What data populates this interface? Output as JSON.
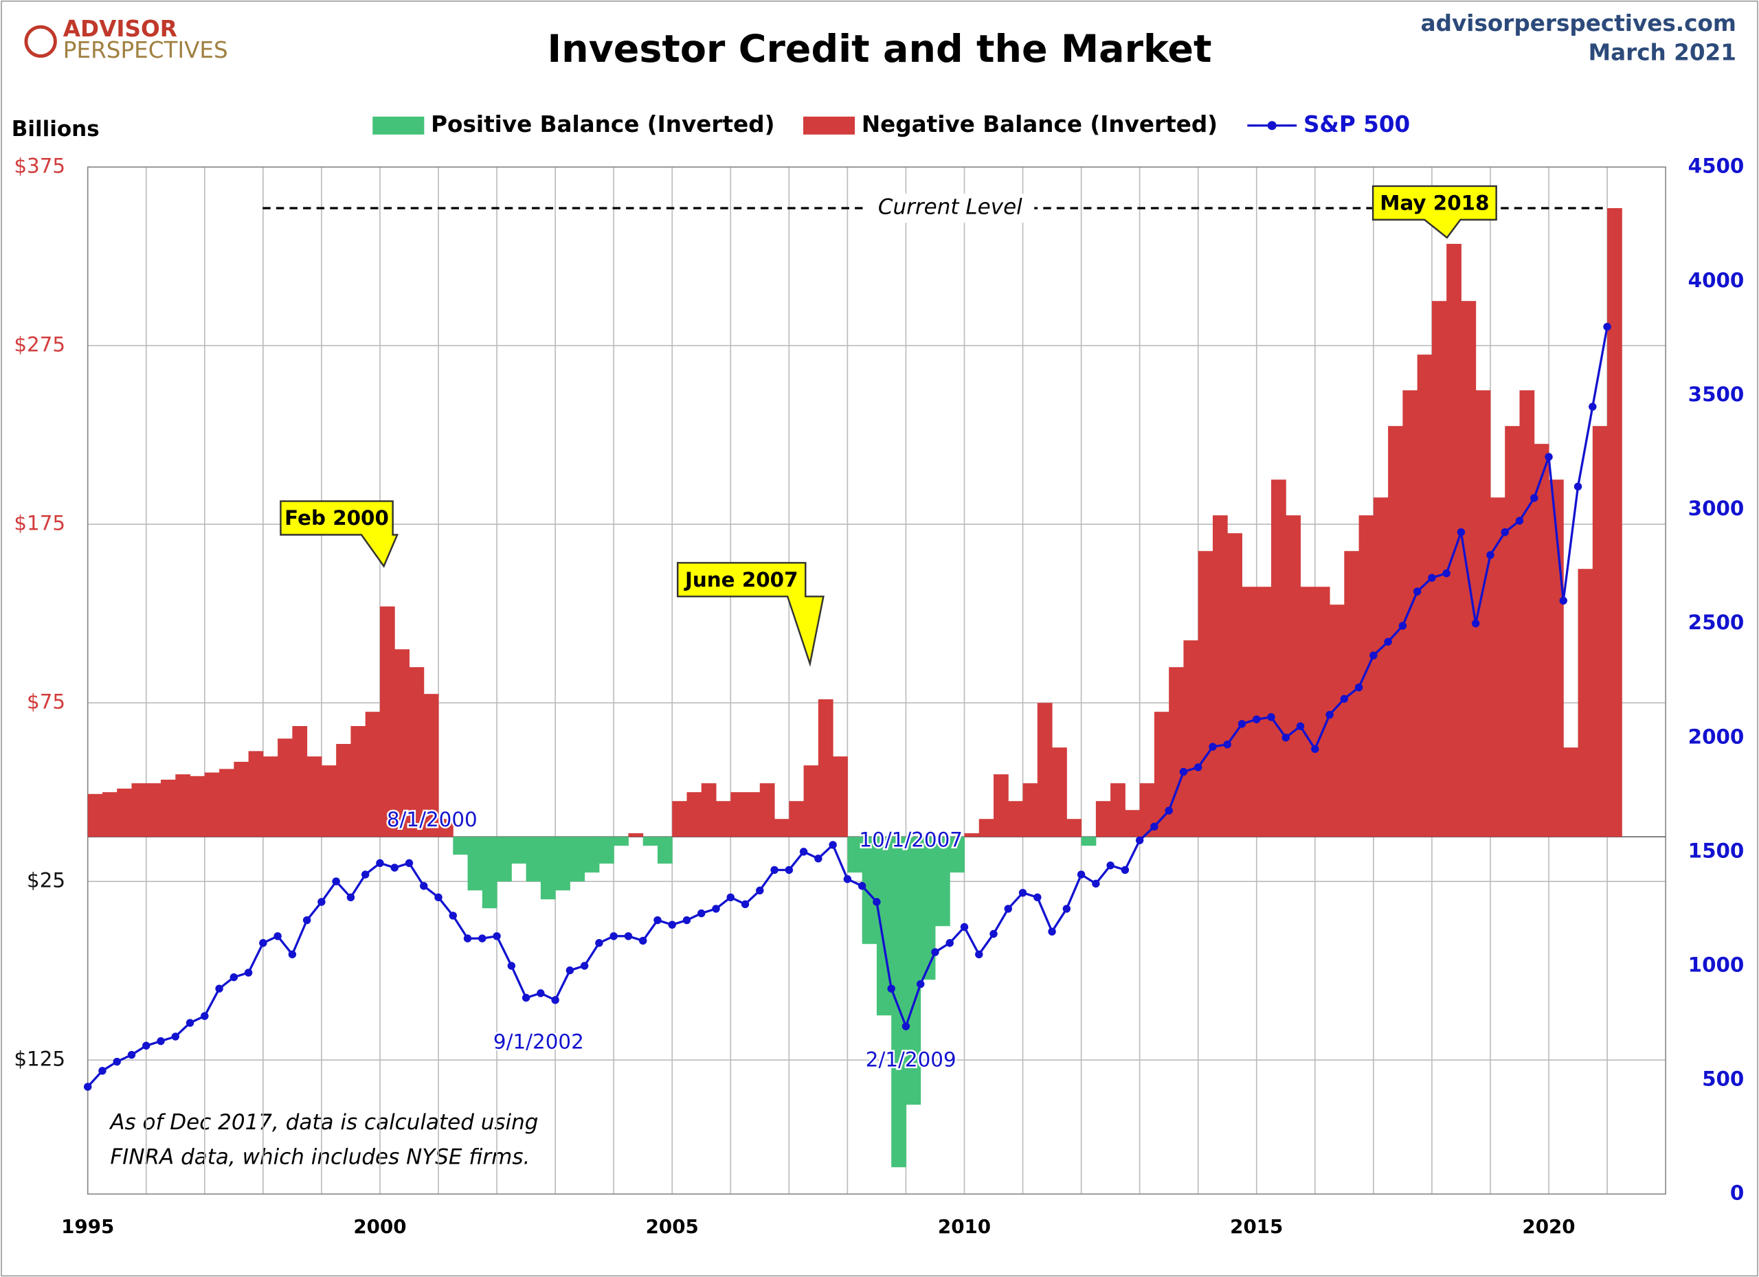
{
  "chart_data": {
    "type": "bar",
    "title": "Investor Credit and the Market",
    "source": "advisorperspectives.com",
    "date": "March 2021",
    "logo": [
      "ADVISOR",
      "PERSPECTIVES"
    ],
    "y_label": "Billions",
    "note": [
      "As of Dec 2017,  data is calculated using",
      "FINRA data, which includes NYSE firms."
    ],
    "current_level_label": "Current Level",
    "callouts": [
      "Feb 2000",
      "June 2007",
      "May 2018"
    ],
    "date_labels": [
      "8/1/2000",
      "9/1/2002",
      "10/1/2007",
      "2/1/2009"
    ],
    "x": [
      1995,
      1995.25,
      1995.5,
      1995.75,
      1996,
      1996.25,
      1996.5,
      1996.75,
      1997,
      1997.25,
      1997.5,
      1997.75,
      1998,
      1998.25,
      1998.5,
      1998.75,
      1999,
      1999.25,
      1999.5,
      1999.75,
      2000,
      2000.25,
      2000.5,
      2000.75,
      2001,
      2001.25,
      2001.5,
      2001.75,
      2002,
      2002.25,
      2002.5,
      2002.75,
      2003,
      2003.25,
      2003.5,
      2003.75,
      2004,
      2004.25,
      2004.5,
      2004.75,
      2005,
      2005.25,
      2005.5,
      2005.75,
      2006,
      2006.25,
      2006.5,
      2006.75,
      2007,
      2007.25,
      2007.5,
      2007.75,
      2008,
      2008.25,
      2008.5,
      2008.75,
      2009,
      2009.25,
      2009.5,
      2009.75,
      2010,
      2010.25,
      2010.5,
      2010.75,
      2011,
      2011.25,
      2011.5,
      2011.75,
      2012,
      2012.25,
      2012.5,
      2012.75,
      2013,
      2013.25,
      2013.5,
      2013.75,
      2014,
      2014.25,
      2014.5,
      2014.75,
      2015,
      2015.25,
      2015.5,
      2015.75,
      2016,
      2016.25,
      2016.5,
      2016.75,
      2017,
      2017.25,
      2017.5,
      2017.75,
      2018,
      2018.25,
      2018.5,
      2018.75,
      2019,
      2019.25,
      2019.5,
      2019.75,
      2020,
      2020.25,
      2020.5,
      2020.75,
      2021
    ],
    "series": [
      {
        "name": "Positive Balance (Inverted)",
        "color": "#45c27a",
        "values": [
          null,
          null,
          null,
          null,
          null,
          null,
          null,
          null,
          null,
          null,
          null,
          null,
          null,
          null,
          null,
          null,
          null,
          null,
          null,
          null,
          null,
          null,
          null,
          null,
          null,
          -10,
          -30,
          -40,
          -25,
          -15,
          -25,
          -35,
          -30,
          -25,
          -20,
          -15,
          -5,
          null,
          -5,
          -15,
          null,
          null,
          null,
          null,
          null,
          null,
          null,
          null,
          null,
          null,
          null,
          null,
          -20,
          -60,
          -100,
          -185,
          -150,
          -80,
          -50,
          -20,
          null,
          null,
          null,
          null,
          null,
          null,
          null,
          null,
          -5,
          null,
          null,
          null,
          null,
          null,
          null,
          null,
          null,
          null,
          null,
          null,
          null,
          null,
          null,
          null,
          null,
          null,
          null,
          null,
          null,
          null,
          null,
          null,
          null,
          null,
          null,
          null,
          null,
          null,
          null,
          null,
          null,
          null,
          null,
          null,
          null
        ]
      },
      {
        "name": "Negative Balance (Inverted)",
        "color": "#d23c3c",
        "values": [
          24,
          25,
          27,
          30,
          30,
          32,
          35,
          34,
          36,
          38,
          42,
          48,
          45,
          55,
          62,
          45,
          40,
          52,
          62,
          70,
          129,
          105,
          95,
          80,
          10,
          null,
          null,
          null,
          null,
          null,
          null,
          null,
          null,
          null,
          null,
          null,
          null,
          2,
          null,
          null,
          20,
          25,
          30,
          20,
          25,
          25,
          30,
          10,
          20,
          40,
          77,
          45,
          null,
          null,
          null,
          null,
          null,
          null,
          null,
          null,
          2,
          10,
          35,
          20,
          30,
          75,
          50,
          10,
          null,
          20,
          30,
          15,
          30,
          70,
          95,
          110,
          160,
          180,
          170,
          140,
          140,
          200,
          180,
          140,
          140,
          130,
          160,
          180,
          190,
          230,
          250,
          270,
          300,
          332,
          300,
          250,
          190,
          230,
          250,
          220,
          200,
          50,
          150,
          230,
          352
        ]
      },
      {
        "name": "S&P 500",
        "color": "#1212d0",
        "axis": "y2",
        "values": [
          470,
          540,
          580,
          610,
          650,
          670,
          690,
          750,
          780,
          900,
          950,
          970,
          1100,
          1130,
          1050,
          1200,
          1280,
          1370,
          1300,
          1400,
          1450,
          1430,
          1450,
          1350,
          1300,
          1220,
          1120,
          1120,
          1130,
          1000,
          860,
          880,
          850,
          980,
          1000,
          1100,
          1130,
          1130,
          1110,
          1200,
          1180,
          1200,
          1230,
          1250,
          1300,
          1270,
          1330,
          1420,
          1420,
          1500,
          1470,
          1530,
          1380,
          1350,
          1280,
          900,
          735,
          920,
          1060,
          1100,
          1170,
          1050,
          1140,
          1250,
          1320,
          1300,
          1150,
          1250,
          1400,
          1360,
          1440,
          1420,
          1550,
          1610,
          1680,
          1850,
          1870,
          1960,
          1970,
          2060,
          2080,
          2090,
          2000,
          2050,
          1950,
          2100,
          2170,
          2220,
          2360,
          2420,
          2490,
          2640,
          2700,
          2720,
          2900,
          2500,
          2800,
          2900,
          2950,
          3050,
          3230,
          2600,
          3100,
          3450,
          3800
        ]
      }
    ],
    "xlim": [
      1995,
      2022
    ],
    "xticks": [
      1995,
      2000,
      2005,
      2010,
      2015,
      2020
    ],
    "xgrid": [
      1995,
      1996,
      1997,
      1998,
      1999,
      2000,
      2001,
      2002,
      2003,
      2004,
      2005,
      2006,
      2007,
      2008,
      2009,
      2010,
      2011,
      2012,
      2013,
      2014,
      2015,
      2016,
      2017,
      2018,
      2019,
      2020,
      2021
    ],
    "ylim": [
      -200,
      375
    ],
    "yticks": [
      {
        "value": 375,
        "label": "$375"
      },
      {
        "value": 275,
        "label": "$275"
      },
      {
        "value": 175,
        "label": "$175"
      },
      {
        "value": 75,
        "label": "$75"
      },
      {
        "value": -25,
        "label": "$25"
      },
      {
        "value": -125,
        "label": "$125"
      }
    ],
    "y2lim": [
      0,
      4500
    ],
    "y2ticks": [
      0,
      500,
      1000,
      1500,
      2000,
      2500,
      3000,
      3500,
      4000,
      4500
    ],
    "grid": true
  }
}
